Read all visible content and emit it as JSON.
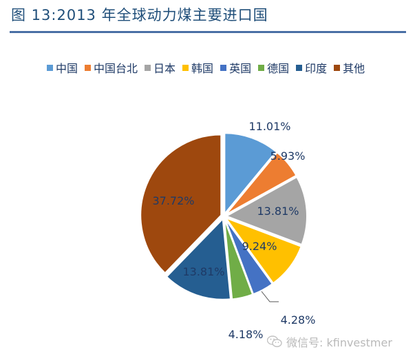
{
  "title": "图 13:2013 年全球动力煤主要进口国",
  "chart_data": {
    "type": "pie",
    "unit": "%",
    "legend_position": "top",
    "slices": [
      {
        "label": "中国",
        "value": 11.01,
        "display": "11.01%",
        "color": "#5b9bd5"
      },
      {
        "label": "中国台北",
        "value": 5.93,
        "display": "5.93%",
        "color": "#ed7d31"
      },
      {
        "label": "日本",
        "value": 13.81,
        "display": "13.81%",
        "color": "#a5a5a5"
      },
      {
        "label": "韩国",
        "value": 9.24,
        "display": "9.24%",
        "color": "#ffc000"
      },
      {
        "label": "英国",
        "value": 4.28,
        "display": "4.28%",
        "color": "#4472c4"
      },
      {
        "label": "德国",
        "value": 4.18,
        "display": "4.18%",
        "color": "#70ad47"
      },
      {
        "label": "印度",
        "value": 13.81,
        "display": "13.81%",
        "color": "#255e91"
      },
      {
        "label": "其他",
        "value": 37.72,
        "display": "37.72%",
        "color": "#9e480e"
      }
    ]
  },
  "watermark": {
    "text": "微信号: kfinvestmer",
    "icon": "wechat-icon"
  }
}
